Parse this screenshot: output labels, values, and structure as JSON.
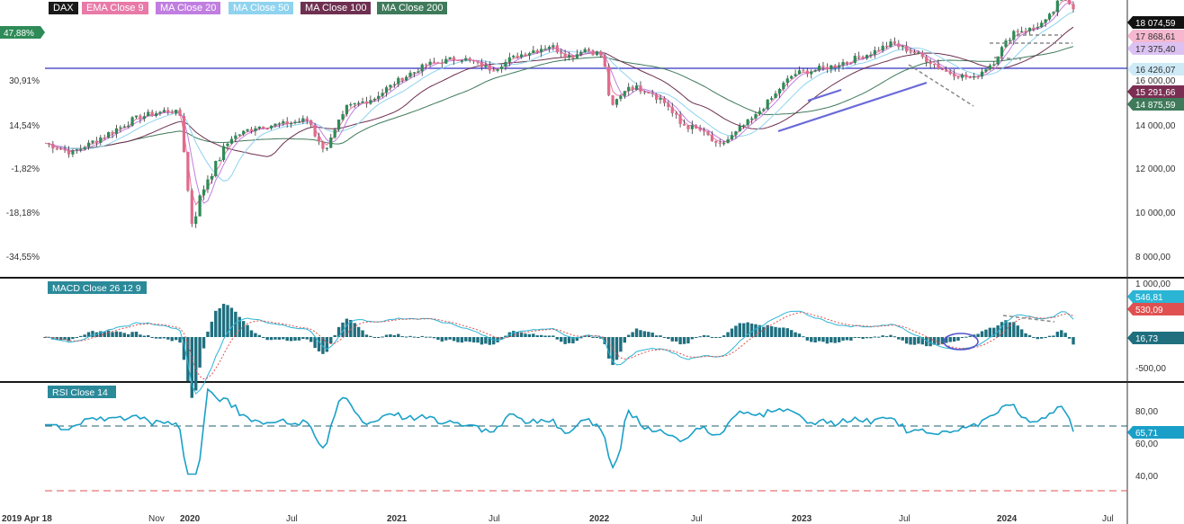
{
  "legend": [
    {
      "label": "DAX",
      "bg": "#1a1a1a"
    },
    {
      "label": "EMA Close 9",
      "bg": "#e87aa8"
    },
    {
      "label": "MA Close 20",
      "bg": "#c07ee0"
    },
    {
      "label": "MA Close 50",
      "bg": "#8fd3ef"
    },
    {
      "label": "MA Close 100",
      "bg": "#6e3050"
    },
    {
      "label": "MA Close 200",
      "bg": "#3f7a5a"
    }
  ],
  "colors": {
    "candle_up": "#2e8b57",
    "candle_down": "#e06b8b",
    "ema9": "#e87aa8",
    "ma20": "#c07ee0",
    "ma50": "#8fd3ef",
    "ma100": "#6e3050",
    "ma200": "#3f7a5a",
    "hline": "#5555cc",
    "macd": "#2bb5d5",
    "signal": "#e05050",
    "hist": "#1f6f7f",
    "rsi": "#1aa0c8"
  },
  "left_axis": {
    "labels": [
      "47,88%",
      "30,91%",
      "14,54%",
      "-1,82%",
      "-18,18%",
      "-34,55%"
    ]
  },
  "right_axis": {
    "labels": [
      "16 000,00",
      "14 000,00",
      "12 000,00",
      "10 000,00",
      "8 000,00"
    ]
  },
  "right_badges": [
    {
      "text": "18 074,59",
      "bg": "#111111",
      "fg": "#ffffff"
    },
    {
      "text": "17 868,61",
      "bg": "#f5b8cf",
      "fg": "#333333"
    },
    {
      "text": "17 375,40",
      "bg": "#dcc2f2",
      "fg": "#333333"
    },
    {
      "text": "16 426,07",
      "bg": "#cfeaf7",
      "fg": "#333333"
    },
    {
      "text": "15 291,66",
      "bg": "#7a2f52",
      "fg": "#ffffff"
    },
    {
      "text": "14 875,59",
      "bg": "#3f7a5a",
      "fg": "#ffffff"
    }
  ],
  "macd_panel": {
    "title": "MACD Close 26 12 9",
    "axis_labels": [
      "1 000,00",
      "-500,00"
    ],
    "badges": [
      {
        "text": "546,81",
        "bg": "#2bb5d5",
        "fg": "#ffffff"
      },
      {
        "text": "530,09",
        "bg": "#e05050",
        "fg": "#ffffff"
      },
      {
        "text": "16,73",
        "bg": "#1f6f7f",
        "fg": "#ffffff"
      }
    ]
  },
  "rsi_panel": {
    "title": "RSI Close 14",
    "axis_labels": [
      "80,00",
      "60,00",
      "40,00"
    ],
    "badges": [
      {
        "text": "65,71",
        "bg": "#1aa0c8",
        "fg": "#ffffff"
      }
    ]
  },
  "x_axis": {
    "labels": [
      "2019 Apr 18",
      "Nov",
      "2020",
      "Jul",
      "2021",
      "Jul",
      "2022",
      "Jul",
      "2023",
      "Jul",
      "2024",
      "Jul"
    ]
  },
  "chart_data": {
    "type": "line",
    "title": "DAX",
    "x": [
      "2019-04",
      "2019-11",
      "2020-01",
      "2020-03",
      "2020-07",
      "2021-01",
      "2021-07",
      "2021-11",
      "2022-01",
      "2022-03",
      "2022-07",
      "2022-10",
      "2023-01",
      "2023-07",
      "2023-10",
      "2024-01",
      "2024-03",
      "2024-04"
    ],
    "series": [
      {
        "name": "DAX",
        "values": [
          12100,
          13300,
          13500,
          8400,
          12800,
          13900,
          15600,
          16200,
          16000,
          13500,
          12800,
          12000,
          15000,
          16400,
          14800,
          16800,
          18300,
          17800
        ]
      }
    ],
    "y_range": [
      7500,
      19000
    ],
    "reference_lines": {
      "horizontal_price": 16426
    },
    "macd": {
      "macd": 546.81,
      "signal": 530.09,
      "histogram": 16.73
    },
    "rsi": {
      "value": 65.71,
      "upper": 70,
      "lower": 30
    },
    "grid": false
  }
}
